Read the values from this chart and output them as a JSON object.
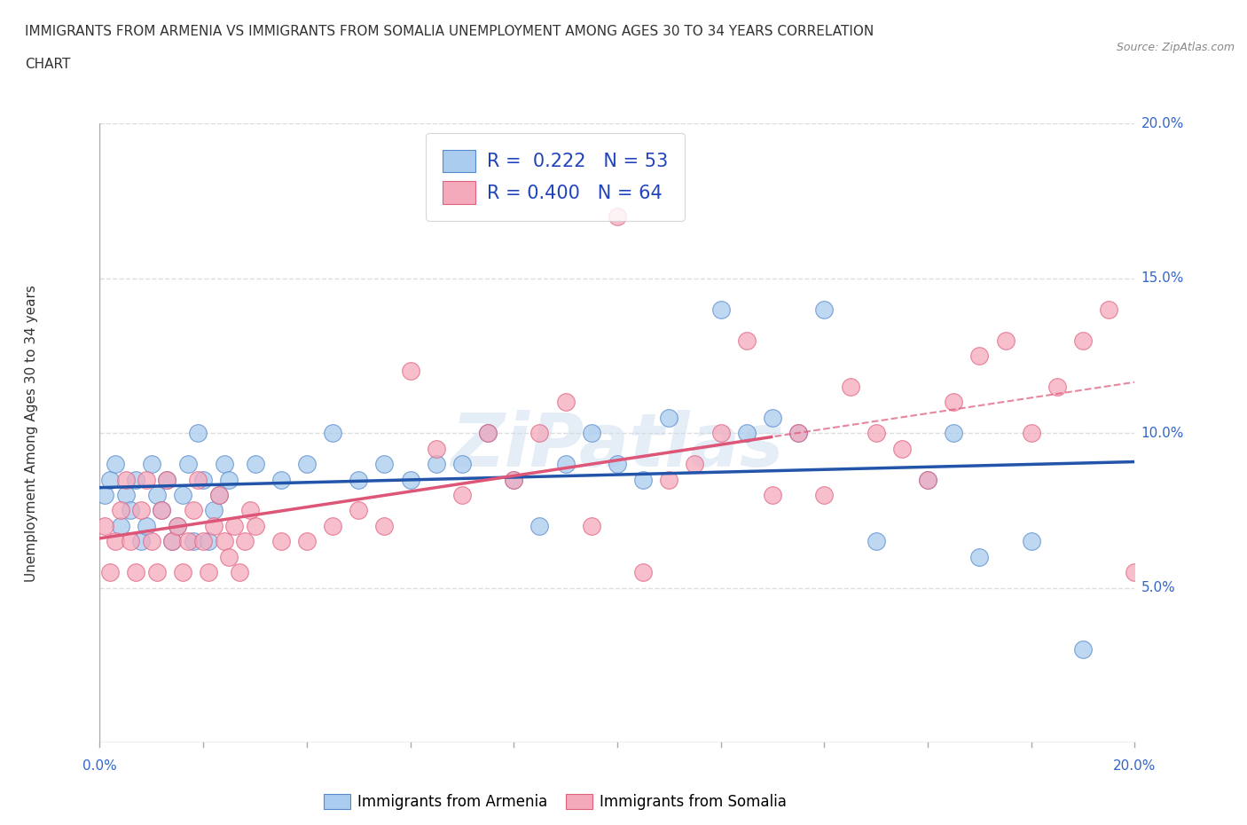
{
  "title_line1": "IMMIGRANTS FROM ARMENIA VS IMMIGRANTS FROM SOMALIA UNEMPLOYMENT AMONG AGES 30 TO 34 YEARS CORRELATION",
  "title_line2": "CHART",
  "source": "Source: ZipAtlas.com",
  "ylabel": "Unemployment Among Ages 30 to 34 years",
  "xlim": [
    0.0,
    0.2
  ],
  "ylim": [
    0.0,
    0.2
  ],
  "xticks": [
    0.0,
    0.02,
    0.04,
    0.06,
    0.08,
    0.1,
    0.12,
    0.14,
    0.16,
    0.18,
    0.2
  ],
  "yticks": [
    0.0,
    0.05,
    0.1,
    0.15,
    0.2
  ],
  "right_yticklabels": [
    "",
    "5.0%",
    "10.0%",
    "15.0%",
    "20.0%"
  ],
  "bottom_xticklabels_ends": [
    "0.0%",
    "20.0%"
  ],
  "armenia_color": "#aaccee",
  "armenia_edge": "#5588cc",
  "somalia_color": "#f5aabc",
  "somalia_edge": "#e06080",
  "armenia_R": 0.222,
  "armenia_N": 53,
  "somalia_R": 0.4,
  "somalia_N": 64,
  "armenia_line_color": "#2255aa",
  "somalia_line_color": "#dd5577",
  "watermark": "ZiPatlas",
  "background_color": "#ffffff",
  "grid_color": "#dddddd",
  "armenia_x": [
    0.001,
    0.002,
    0.003,
    0.004,
    0.005,
    0.006,
    0.007,
    0.008,
    0.009,
    0.01,
    0.011,
    0.012,
    0.013,
    0.014,
    0.015,
    0.016,
    0.017,
    0.018,
    0.019,
    0.02,
    0.021,
    0.022,
    0.023,
    0.024,
    0.025,
    0.03,
    0.035,
    0.04,
    0.045,
    0.05,
    0.055,
    0.06,
    0.065,
    0.07,
    0.075,
    0.08,
    0.085,
    0.09,
    0.095,
    0.1,
    0.105,
    0.11,
    0.12,
    0.125,
    0.13,
    0.135,
    0.14,
    0.15,
    0.16,
    0.165,
    0.17,
    0.18,
    0.19
  ],
  "armenia_y": [
    0.08,
    0.085,
    0.09,
    0.07,
    0.08,
    0.075,
    0.085,
    0.065,
    0.07,
    0.09,
    0.08,
    0.075,
    0.085,
    0.065,
    0.07,
    0.08,
    0.09,
    0.065,
    0.1,
    0.085,
    0.065,
    0.075,
    0.08,
    0.09,
    0.085,
    0.09,
    0.085,
    0.09,
    0.1,
    0.085,
    0.09,
    0.085,
    0.09,
    0.09,
    0.1,
    0.085,
    0.07,
    0.09,
    0.1,
    0.09,
    0.085,
    0.105,
    0.14,
    0.1,
    0.105,
    0.1,
    0.14,
    0.065,
    0.085,
    0.1,
    0.06,
    0.065,
    0.03
  ],
  "somalia_x": [
    0.001,
    0.002,
    0.003,
    0.004,
    0.005,
    0.006,
    0.007,
    0.008,
    0.009,
    0.01,
    0.011,
    0.012,
    0.013,
    0.014,
    0.015,
    0.016,
    0.017,
    0.018,
    0.019,
    0.02,
    0.021,
    0.022,
    0.023,
    0.024,
    0.025,
    0.026,
    0.027,
    0.028,
    0.029,
    0.03,
    0.035,
    0.04,
    0.045,
    0.05,
    0.055,
    0.06,
    0.065,
    0.07,
    0.075,
    0.08,
    0.085,
    0.09,
    0.095,
    0.1,
    0.105,
    0.11,
    0.115,
    0.12,
    0.125,
    0.13,
    0.135,
    0.14,
    0.145,
    0.15,
    0.155,
    0.16,
    0.165,
    0.17,
    0.175,
    0.18,
    0.185,
    0.19,
    0.195,
    0.2
  ],
  "somalia_y": [
    0.07,
    0.055,
    0.065,
    0.075,
    0.085,
    0.065,
    0.055,
    0.075,
    0.085,
    0.065,
    0.055,
    0.075,
    0.085,
    0.065,
    0.07,
    0.055,
    0.065,
    0.075,
    0.085,
    0.065,
    0.055,
    0.07,
    0.08,
    0.065,
    0.06,
    0.07,
    0.055,
    0.065,
    0.075,
    0.07,
    0.065,
    0.065,
    0.07,
    0.075,
    0.07,
    0.12,
    0.095,
    0.08,
    0.1,
    0.085,
    0.1,
    0.11,
    0.07,
    0.17,
    0.055,
    0.085,
    0.09,
    0.1,
    0.13,
    0.08,
    0.1,
    0.08,
    0.115,
    0.1,
    0.095,
    0.085,
    0.11,
    0.125,
    0.13,
    0.1,
    0.115,
    0.13,
    0.14,
    0.055
  ]
}
